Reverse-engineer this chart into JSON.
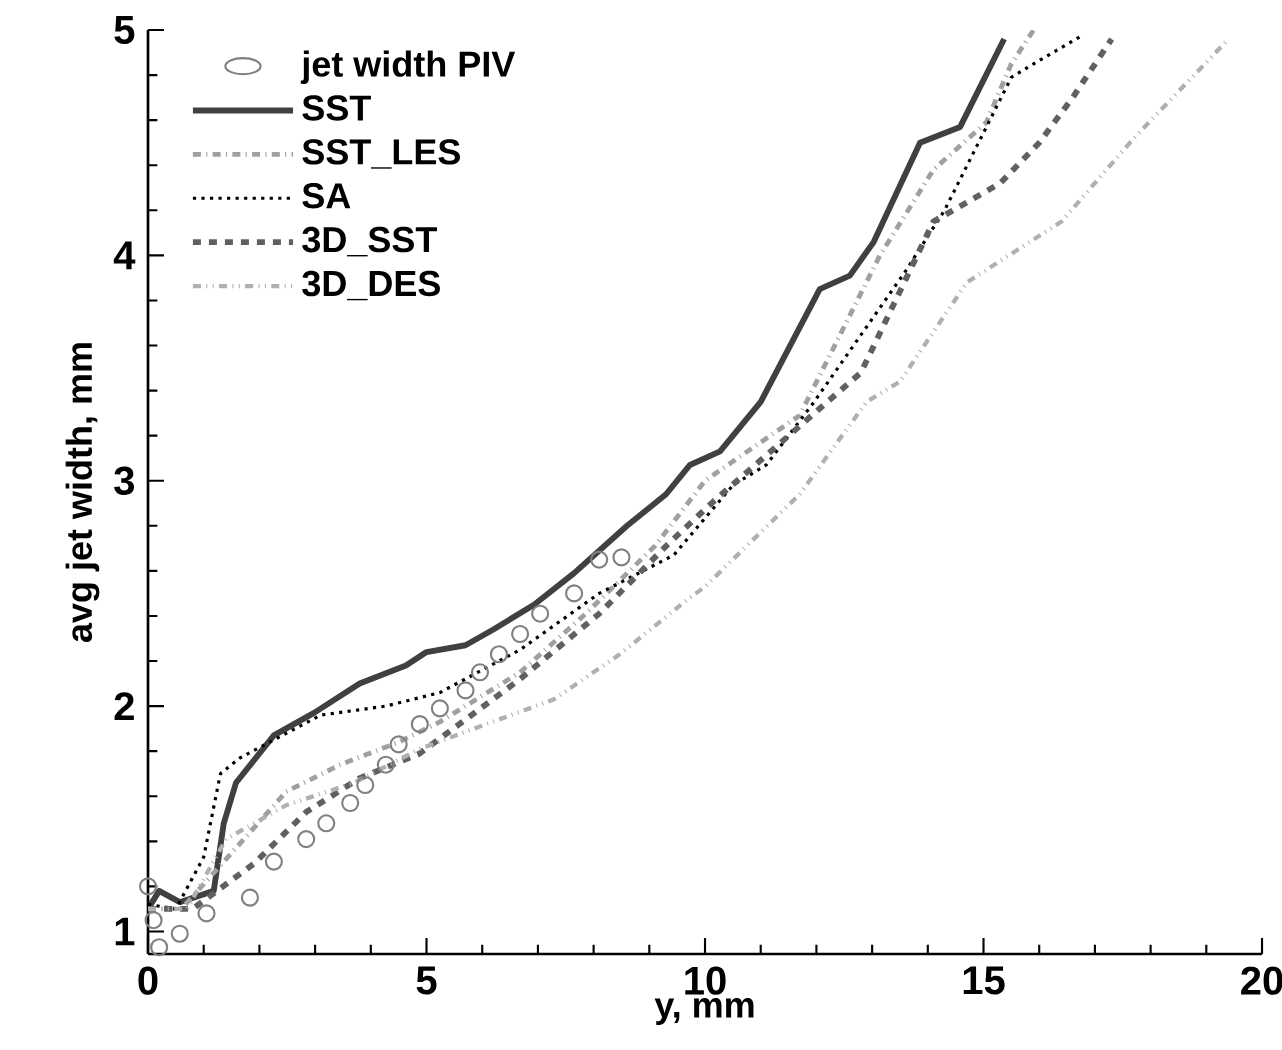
{
  "chart_data": {
    "type": "line",
    "xlabel": "y, mm",
    "ylabel": "avg jet width, mm",
    "xlim": [
      0,
      20
    ],
    "ylim": [
      0.9,
      5
    ],
    "xticks": [
      0,
      5,
      10,
      15,
      20
    ],
    "yticks": [
      1,
      2,
      3,
      4,
      5
    ],
    "grid": false,
    "legend": "top left",
    "series": [
      {
        "name": "jet width PIV",
        "type": "scatter",
        "marker": "circle",
        "color": "#808080",
        "x": [
          0.0,
          0.1,
          0.2,
          0.57,
          1.05,
          1.83,
          2.26,
          2.84,
          3.2,
          3.63,
          3.9,
          4.27,
          4.5,
          4.88,
          5.24,
          5.7,
          5.96,
          6.3,
          6.68,
          7.04,
          7.65,
          8.1,
          8.5
        ],
        "values": [
          1.2,
          1.05,
          0.93,
          0.99,
          1.08,
          1.15,
          1.31,
          1.41,
          1.48,
          1.57,
          1.65,
          1.74,
          1.83,
          1.92,
          1.99,
          2.07,
          2.15,
          2.23,
          2.32,
          2.41,
          2.5,
          2.65,
          2.66
        ]
      },
      {
        "name": "SST",
        "line_style": "solid",
        "color": "#404040",
        "x": [
          0.0,
          0.2,
          0.57,
          1.18,
          1.36,
          1.58,
          2.26,
          2.98,
          3.8,
          4.63,
          5.0,
          5.7,
          6.2,
          6.93,
          7.65,
          8.6,
          9.3,
          9.73,
          10.27,
          11.0,
          12.06,
          12.6,
          13.03,
          13.86,
          14.58,
          15.37
        ],
        "values": [
          1.1,
          1.18,
          1.13,
          1.18,
          1.48,
          1.66,
          1.87,
          1.97,
          2.1,
          2.18,
          2.24,
          2.27,
          2.34,
          2.45,
          2.59,
          2.8,
          2.94,
          3.07,
          3.13,
          3.35,
          3.85,
          3.91,
          4.06,
          4.5,
          4.57,
          4.96
        ]
      },
      {
        "name": "SST_LES",
        "line_style": "dashdotted",
        "color": "#a0a0a0",
        "x": [
          0.0,
          0.6,
          1.65,
          2.48,
          3.45,
          4.5,
          5.24,
          6.68,
          7.86,
          9.1,
          10.0,
          11.7,
          13.14,
          14.1,
          15.05,
          15.5,
          15.9
        ],
        "values": [
          1.1,
          1.1,
          1.39,
          1.62,
          1.74,
          1.84,
          1.93,
          2.15,
          2.41,
          2.71,
          3.0,
          3.29,
          4.0,
          4.38,
          4.59,
          4.85,
          5.0
        ]
      },
      {
        "name": "SA",
        "line_style": "dotted",
        "color": "#000000",
        "x": [
          0.0,
          0.5,
          1.0,
          1.3,
          1.65,
          3.1,
          4.27,
          5.24,
          6.68,
          8.1,
          9.44,
          10.5,
          11.1,
          11.96,
          13.6,
          14.3,
          15.5,
          15.9,
          16.8
        ],
        "values": [
          1.12,
          1.1,
          1.33,
          1.7,
          1.77,
          1.96,
          2.0,
          2.06,
          2.25,
          2.5,
          2.67,
          2.98,
          3.07,
          3.35,
          3.93,
          4.2,
          4.79,
          4.85,
          4.98
        ]
      },
      {
        "name": "3D_SST",
        "line_style": "dashed",
        "color": "#606060",
        "x": [
          0.0,
          0.8,
          1.9,
          2.84,
          3.8,
          4.88,
          5.7,
          6.68,
          8.1,
          9.3,
          10.16,
          12.8,
          14.1,
          15.3,
          16.0,
          16.6,
          17.3
        ],
        "values": [
          1.1,
          1.1,
          1.3,
          1.53,
          1.68,
          1.79,
          1.94,
          2.12,
          2.41,
          2.71,
          2.91,
          3.48,
          4.15,
          4.32,
          4.5,
          4.7,
          4.96
        ]
      },
      {
        "name": "3D_DES",
        "line_style": "dashdotdotted",
        "color": "#b0b0b0",
        "x": [
          0.0,
          0.7,
          1.4,
          2.48,
          3.7,
          4.88,
          6.07,
          7.29,
          8.47,
          9.67,
          10.0,
          11.7,
          12.9,
          13.5,
          14.7,
          16.4,
          17.7,
          19.4
        ],
        "values": [
          1.1,
          1.1,
          1.41,
          1.56,
          1.66,
          1.81,
          1.92,
          2.03,
          2.23,
          2.47,
          2.53,
          2.94,
          3.35,
          3.44,
          3.88,
          4.15,
          4.52,
          4.96
        ]
      }
    ]
  }
}
